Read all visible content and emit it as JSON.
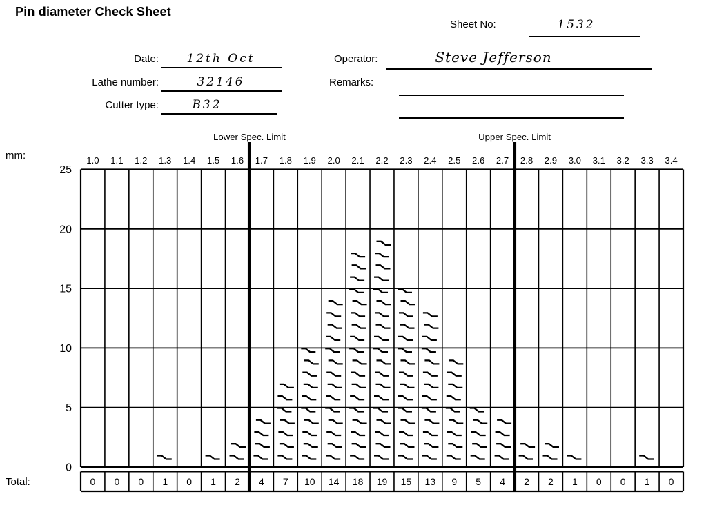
{
  "title": "Pin diameter Check Sheet",
  "form": {
    "sheet_no_label": "Sheet No:",
    "sheet_no_value": "1532",
    "date_label": "Date:",
    "date_value": "12th Oct",
    "lathe_label": "Lathe number:",
    "lathe_value": "32146",
    "cutter_label": "Cutter type:",
    "cutter_value": "B32",
    "operator_label": "Operator:",
    "operator_value": "Steve Jefferson",
    "remarks_label": "Remarks:",
    "remarks_value": ""
  },
  "colors": {
    "ink": "#000000",
    "paper": "#ffffff"
  },
  "chart_data": {
    "type": "bar",
    "subtype": "tally-check-sheet-histogram",
    "title": "",
    "unit_label": "mm:",
    "total_label": "Total:",
    "categories": [
      "1.0",
      "1.1",
      "1.2",
      "1.3",
      "1.4",
      "1.5",
      "1.6",
      "1.7",
      "1.8",
      "1.9",
      "2.0",
      "2.1",
      "2.2",
      "2.3",
      "2.4",
      "2.5",
      "2.6",
      "2.7",
      "2.8",
      "2.9",
      "3.0",
      "3.1",
      "3.2",
      "3.3",
      "3.4"
    ],
    "values": [
      0,
      0,
      0,
      1,
      0,
      1,
      2,
      4,
      7,
      10,
      14,
      18,
      19,
      15,
      13,
      9,
      5,
      4,
      2,
      2,
      1,
      0,
      0,
      1,
      0
    ],
    "y_ticks": [
      0,
      5,
      10,
      15,
      20,
      25
    ],
    "ylim": [
      0,
      25
    ],
    "grid": "horizontal lines every 5 units; vertical line per category column",
    "legend": "none",
    "spec_limits": {
      "lower": {
        "label": "Lower Spec. Limit",
        "after_category_index": 7
      },
      "upper": {
        "label": "Upper Spec. Limit",
        "after_category_index": 18
      }
    }
  }
}
